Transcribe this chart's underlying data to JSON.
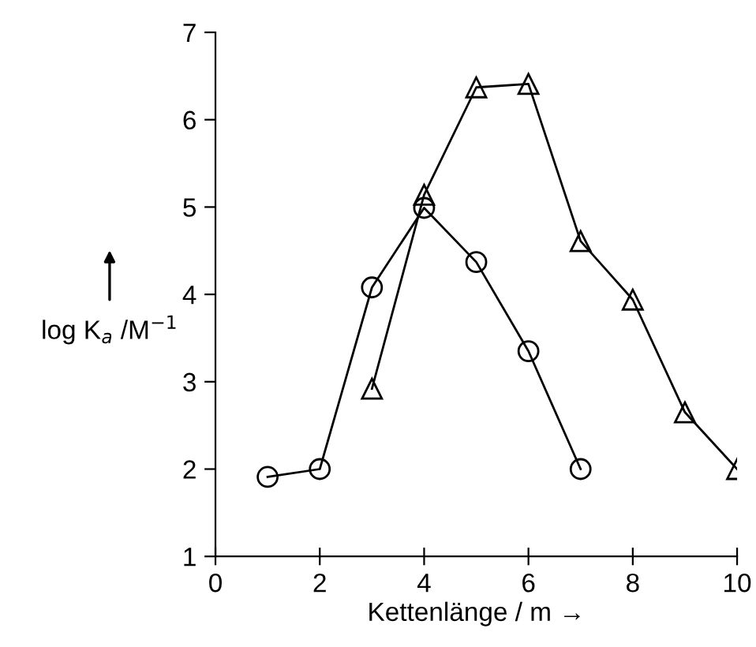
{
  "chart_data": {
    "type": "line",
    "xlabel": "Kettenlänge / m →",
    "ylabel": "log K$_{a}$ /M$^{−1}$",
    "xlim": [
      0,
      10
    ],
    "ylim": [
      1,
      7
    ],
    "xticks": [
      0,
      2,
      4,
      6,
      8,
      10
    ],
    "yticks": [
      1,
      2,
      3,
      4,
      5,
      6,
      7
    ],
    "grid": false,
    "legend": false,
    "line_style": "solid",
    "series": [
      {
        "x": [
          1,
          2,
          3,
          4,
          5,
          6,
          7
        ],
        "values": [
          1.91,
          2.0,
          4.08,
          4.99,
          4.37,
          3.35,
          2.0
        ],
        "color": "#000000",
        "marker": "circle"
      },
      {
        "x": [
          3,
          4,
          5,
          6,
          7,
          8,
          9,
          10
        ],
        "values": [
          2.92,
          5.14,
          6.37,
          6.41,
          4.61,
          3.94,
          2.65,
          2.0
        ],
        "color": "#000000",
        "marker": "triangle"
      }
    ]
  }
}
